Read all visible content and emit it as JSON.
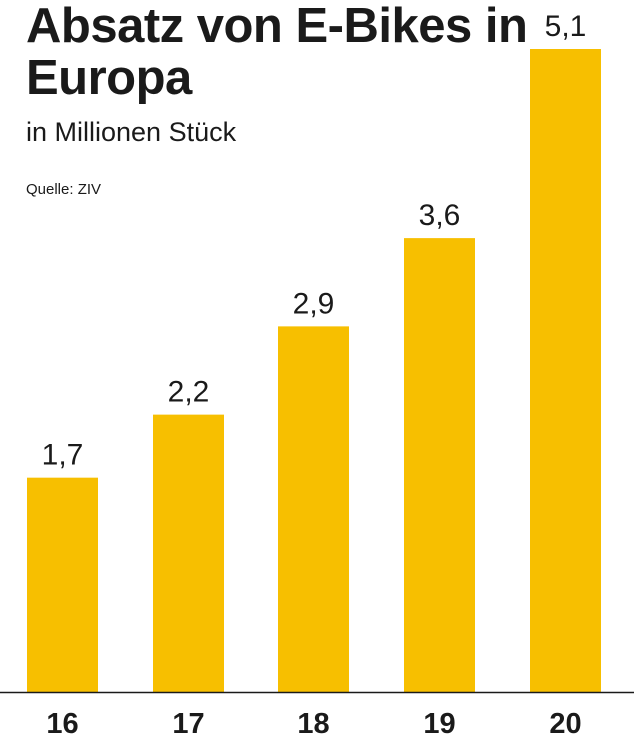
{
  "title": "Absatz von E-Bikes in Europa",
  "subtitle": "in Millionen Stück",
  "source": "Quelle: ZIV",
  "colors": {
    "bar": "#f7bf00",
    "text": "#1a1a1a",
    "baseline": "#1a1a1a"
  },
  "chart_data": {
    "type": "bar",
    "categories": [
      "16",
      "17",
      "18",
      "19",
      "20"
    ],
    "values": [
      1.7,
      2.2,
      2.9,
      3.6,
      5.1
    ],
    "value_labels": [
      "1,7",
      "2,2",
      "2,9",
      "3,6",
      "5,1"
    ],
    "title": "Absatz von E-Bikes in Europa",
    "subtitle": "in Millionen Stück",
    "xlabel": "",
    "ylabel": "",
    "ylim": [
      0,
      5.1
    ],
    "grid": false,
    "legend": "none"
  }
}
